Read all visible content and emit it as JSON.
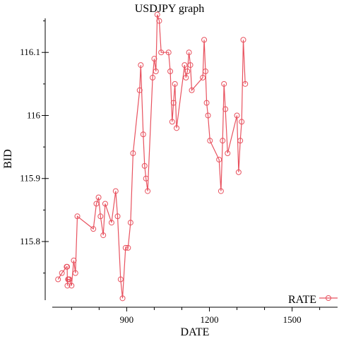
{
  "chart_data": {
    "type": "line",
    "title": "USDJPY graph",
    "xlabel": "DATE",
    "ylabel": "BID",
    "xlim": [
      630,
      1665
    ],
    "ylim": [
      115.707,
      116.163
    ],
    "x_ticks": [
      900,
      1200,
      1500
    ],
    "x_minor_ticks": [
      700,
      800,
      1000,
      1100,
      1300,
      1400,
      1600
    ],
    "y_ticks": [
      115.8,
      115.9,
      116,
      116.1
    ],
    "y_tick_labels": [
      "115.8",
      "115.9",
      "116",
      "116.1"
    ],
    "y_minor_ticks": [
      115.75,
      115.85,
      115.95,
      116.05,
      116.15
    ],
    "grid": false,
    "legend_position": "bottom-right",
    "colors": {
      "series": "#e8525f"
    },
    "series": [
      {
        "name": "RATE",
        "marker": "circle",
        "points": [
          [
            651,
            115.74
          ],
          [
            665,
            115.75
          ],
          [
            682,
            115.76
          ],
          [
            684,
            115.76
          ],
          [
            685,
            115.73
          ],
          [
            687,
            115.74
          ],
          [
            690,
            115.74
          ],
          [
            692,
            115.74
          ],
          [
            700,
            115.73
          ],
          [
            708,
            115.77
          ],
          [
            714,
            115.75
          ],
          [
            721,
            115.84
          ],
          [
            779,
            115.82
          ],
          [
            790,
            115.86
          ],
          [
            798,
            115.87
          ],
          [
            805,
            115.84
          ],
          [
            815,
            115.81
          ],
          [
            822,
            115.86
          ],
          [
            845,
            115.83
          ],
          [
            860,
            115.88
          ],
          [
            867,
            115.84
          ],
          [
            878,
            115.74
          ],
          [
            885,
            115.71
          ],
          [
            896,
            115.79
          ],
          [
            905,
            115.79
          ],
          [
            914,
            115.83
          ],
          [
            923,
            115.94
          ],
          [
            947,
            116.04
          ],
          [
            951,
            116.08
          ],
          [
            960,
            115.97
          ],
          [
            965,
            115.92
          ],
          [
            970,
            115.9
          ],
          [
            976,
            115.88
          ],
          [
            994,
            116.06
          ],
          [
            1000,
            116.09
          ],
          [
            1006,
            116.07
          ],
          [
            1011,
            116.16
          ],
          [
            1018,
            116.15
          ],
          [
            1025,
            116.1
          ],
          [
            1052,
            116.1
          ],
          [
            1058,
            116.07
          ],
          [
            1065,
            115.99
          ],
          [
            1070,
            116.02
          ],
          [
            1075,
            116.05
          ],
          [
            1081,
            115.98
          ],
          [
            1110,
            116.08
          ],
          [
            1115,
            116.06
          ],
          [
            1120,
            116.07
          ],
          [
            1126,
            116.1
          ],
          [
            1131,
            116.08
          ],
          [
            1136,
            116.04
          ],
          [
            1176,
            116.06
          ],
          [
            1181,
            116.12
          ],
          [
            1186,
            116.07
          ],
          [
            1190,
            116.02
          ],
          [
            1195,
            116.0
          ],
          [
            1202,
            115.96
          ],
          [
            1235,
            115.93
          ],
          [
            1242,
            115.88
          ],
          [
            1248,
            115.96
          ],
          [
            1253,
            116.05
          ],
          [
            1258,
            116.01
          ],
          [
            1266,
            115.94
          ],
          [
            1300,
            116.0
          ],
          [
            1306,
            115.91
          ],
          [
            1312,
            115.96
          ],
          [
            1317,
            115.99
          ],
          [
            1323,
            116.12
          ],
          [
            1330,
            116.05
          ]
        ]
      }
    ]
  }
}
